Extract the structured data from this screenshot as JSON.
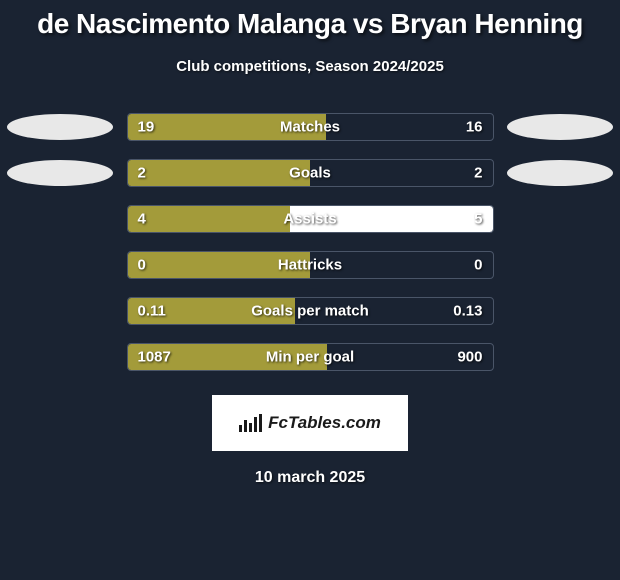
{
  "title": "de Nascimento Malanga vs Bryan Henning",
  "subtitle": "Club competitions, Season 2024/2025",
  "date": "10 march 2025",
  "fctables_label": "FcTables.com",
  "colors": {
    "background": "#1a2332",
    "bar_left": "#a39b3a",
    "bar_right": "#ffffff",
    "ellipse": "#e8e8e8",
    "border": "#4a5568",
    "text": "#ffffff",
    "badge_bg": "#ffffff",
    "badge_text": "#1a1a1a"
  },
  "stats": [
    {
      "label": "Matches",
      "left_value": "19",
      "right_value": "16",
      "left_pct": 54.3,
      "right_pct": 45.7,
      "show_ellipse": true,
      "right_bar_visible": false
    },
    {
      "label": "Goals",
      "left_value": "2",
      "right_value": "2",
      "left_pct": 50,
      "right_pct": 50,
      "show_ellipse": true,
      "right_bar_visible": false
    },
    {
      "label": "Assists",
      "left_value": "4",
      "right_value": "5",
      "left_pct": 44.4,
      "right_pct": 55.6,
      "show_ellipse": false,
      "right_bar_visible": true
    },
    {
      "label": "Hattricks",
      "left_value": "0",
      "right_value": "0",
      "left_pct": 50,
      "right_pct": 50,
      "show_ellipse": false,
      "right_bar_visible": false
    },
    {
      "label": "Goals per match",
      "left_value": "0.11",
      "right_value": "0.13",
      "left_pct": 45.8,
      "right_pct": 54.2,
      "show_ellipse": false,
      "right_bar_visible": false
    },
    {
      "label": "Min per goal",
      "left_value": "1087",
      "right_value": "900",
      "left_pct": 54.7,
      "right_pct": 45.3,
      "show_ellipse": false,
      "right_bar_visible": false
    }
  ]
}
